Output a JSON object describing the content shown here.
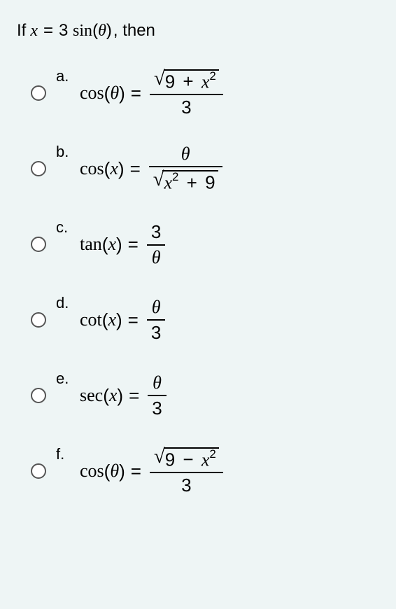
{
  "background_color": "#eef5f5",
  "question": {
    "prefix": "If",
    "substitution_lhs_var": "x",
    "substitution_eq": "=",
    "substitution_coef": "3",
    "substitution_fn": "sin",
    "substitution_arg": "θ",
    "suffix": ", then"
  },
  "options": [
    {
      "letter": "a.",
      "fn": "cos",
      "arg": "θ",
      "eq": "=",
      "rhs_type": "frac_sqrt_over_const",
      "sqrt_inner_parts": [
        "9",
        "+",
        "x",
        "2"
      ],
      "denominator": "3"
    },
    {
      "letter": "b.",
      "fn": "cos",
      "arg": "x",
      "eq": "=",
      "rhs_type": "frac_var_over_sqrt",
      "numerator": "θ",
      "sqrt_inner_parts": [
        "x",
        "2",
        "+",
        "9"
      ]
    },
    {
      "letter": "c.",
      "fn": "tan",
      "arg": "x",
      "eq": "=",
      "rhs_type": "simple_frac",
      "numerator": "3",
      "denominator": "θ"
    },
    {
      "letter": "d.",
      "fn": "cot",
      "arg": "x",
      "eq": "=",
      "rhs_type": "simple_frac",
      "numerator": "θ",
      "denominator": "3"
    },
    {
      "letter": "e.",
      "fn": "sec",
      "arg": "x",
      "eq": "=",
      "rhs_type": "simple_frac",
      "numerator": "θ",
      "denominator": "3"
    },
    {
      "letter": "f.",
      "fn": "cos",
      "arg": "θ",
      "eq": "=",
      "rhs_type": "frac_sqrt_over_const_minus",
      "sqrt_inner_parts": [
        "9",
        "−",
        "x",
        "2"
      ],
      "denominator": "3"
    }
  ]
}
